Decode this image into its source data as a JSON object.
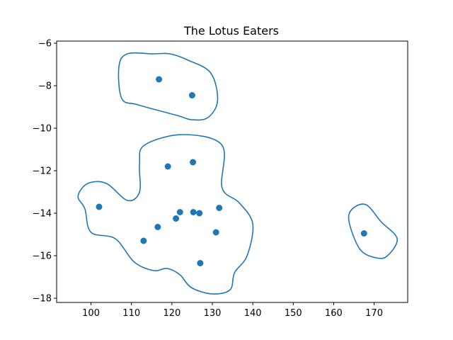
{
  "chart_data": {
    "type": "scatter",
    "title": "The Lotus Eaters",
    "xlabel": "",
    "ylabel": "",
    "xlim": [
      91.5,
      178.3
    ],
    "ylim": [
      -18.2,
      -5.9
    ],
    "x_ticks": [
      100,
      110,
      120,
      130,
      140,
      150,
      160,
      170
    ],
    "y_ticks": [
      -18,
      -16,
      -14,
      -12,
      -10,
      -8,
      -6
    ],
    "grid": false,
    "point_color": "#1f77b4",
    "points": [
      {
        "x": 116.8,
        "y": -7.7
      },
      {
        "x": 125.0,
        "y": -8.45
      },
      {
        "x": 119.0,
        "y": -11.8
      },
      {
        "x": 125.2,
        "y": -11.6
      },
      {
        "x": 102.0,
        "y": -13.7
      },
      {
        "x": 122.0,
        "y": -13.95
      },
      {
        "x": 125.3,
        "y": -13.95
      },
      {
        "x": 126.8,
        "y": -14.0
      },
      {
        "x": 131.7,
        "y": -13.75
      },
      {
        "x": 121.0,
        "y": -14.25
      },
      {
        "x": 116.5,
        "y": -14.65
      },
      {
        "x": 130.9,
        "y": -14.9
      },
      {
        "x": 113.0,
        "y": -15.3
      },
      {
        "x": 127.0,
        "y": -16.35
      },
      {
        "x": 167.5,
        "y": -14.95
      }
    ],
    "contours": [
      {
        "points": [
          [
            106.9,
            -7.1
          ],
          [
            107.6,
            -8.6
          ],
          [
            111.6,
            -8.9
          ],
          [
            121.3,
            -9.4
          ],
          [
            124.9,
            -9.6
          ],
          [
            128.9,
            -9.5
          ],
          [
            131.3,
            -8.7
          ],
          [
            129.6,
            -7.4
          ],
          [
            124.0,
            -6.8
          ],
          [
            119.5,
            -6.5
          ],
          [
            115.3,
            -6.5
          ],
          [
            109.0,
            -6.5
          ]
        ]
      },
      {
        "points": [
          [
            99.2,
            -12.6
          ],
          [
            103.8,
            -12.6
          ],
          [
            109.0,
            -13.4
          ],
          [
            112.0,
            -13.0
          ],
          [
            112.0,
            -11.7
          ],
          [
            113.2,
            -10.8
          ],
          [
            122.6,
            -10.3
          ],
          [
            132.4,
            -10.8
          ],
          [
            132.4,
            -12.8
          ],
          [
            136.6,
            -13.5
          ],
          [
            140.0,
            -14.5
          ],
          [
            138.6,
            -16.0
          ],
          [
            135.5,
            -16.8
          ],
          [
            134.4,
            -17.6
          ],
          [
            130.0,
            -17.8
          ],
          [
            124.8,
            -17.5
          ],
          [
            122.0,
            -16.9
          ],
          [
            118.8,
            -16.6
          ],
          [
            115.5,
            -16.7
          ],
          [
            110.7,
            -16.3
          ],
          [
            106.0,
            -15.2
          ],
          [
            100.0,
            -14.9
          ],
          [
            98.5,
            -13.8
          ],
          [
            96.8,
            -13.2
          ]
        ]
      },
      {
        "points": [
          [
            163.8,
            -14.4
          ],
          [
            164.6,
            -13.8
          ],
          [
            168.0,
            -13.6
          ],
          [
            171.7,
            -14.4
          ],
          [
            175.7,
            -15.2
          ],
          [
            173.3,
            -16.0
          ],
          [
            170.5,
            -16.1
          ],
          [
            166.5,
            -15.7
          ]
        ]
      }
    ]
  }
}
